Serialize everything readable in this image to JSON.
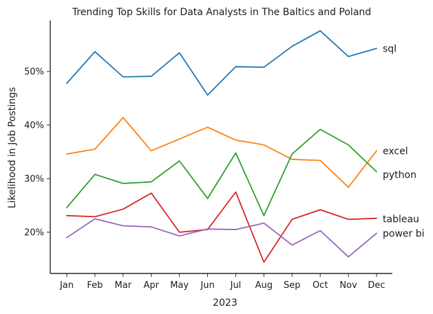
{
  "chart_data": {
    "type": "line",
    "title": "Trending Top Skills for Data Analysts in The Baltics and Poland",
    "xlabel": "2023",
    "ylabel": "Likelihood in Job Postings",
    "categories": [
      "Jan",
      "Feb",
      "Mar",
      "Apr",
      "May",
      "Jun",
      "Jul",
      "Aug",
      "Sep",
      "Oct",
      "Nov",
      "Dec"
    ],
    "ylim": [
      12.3,
      59.5
    ],
    "yticks": [
      20,
      30,
      40,
      50
    ],
    "ytick_labels": [
      "20%",
      "30%",
      "40%",
      "50%"
    ],
    "grid": false,
    "legend": "inline labels at line ends (right)",
    "series": [
      {
        "name": "sql",
        "color": "#1f77b4",
        "values": [
          47.8,
          53.7,
          49.0,
          49.1,
          53.5,
          45.6,
          50.9,
          50.8,
          54.7,
          57.6,
          52.8,
          54.3
        ]
      },
      {
        "name": "excel",
        "color": "#ff7f0e",
        "values": [
          34.6,
          35.5,
          41.4,
          35.2,
          37.4,
          39.6,
          37.2,
          36.3,
          33.6,
          33.4,
          28.4,
          35.2
        ]
      },
      {
        "name": "python",
        "color": "#2ca02c",
        "values": [
          24.6,
          30.8,
          29.1,
          29.4,
          33.3,
          26.3,
          34.8,
          23.1,
          34.6,
          39.2,
          36.3,
          31.3
        ]
      },
      {
        "name": "tableau",
        "color": "#d62728",
        "values": [
          23.1,
          22.9,
          24.3,
          27.3,
          20.0,
          20.5,
          27.5,
          14.4,
          22.4,
          24.2,
          22.4,
          22.6
        ]
      },
      {
        "name": "power bi",
        "color": "#9467bd",
        "values": [
          19.0,
          22.5,
          21.2,
          21.0,
          19.3,
          20.6,
          20.5,
          21.7,
          17.6,
          20.3,
          15.4,
          19.8
        ]
      }
    ]
  }
}
